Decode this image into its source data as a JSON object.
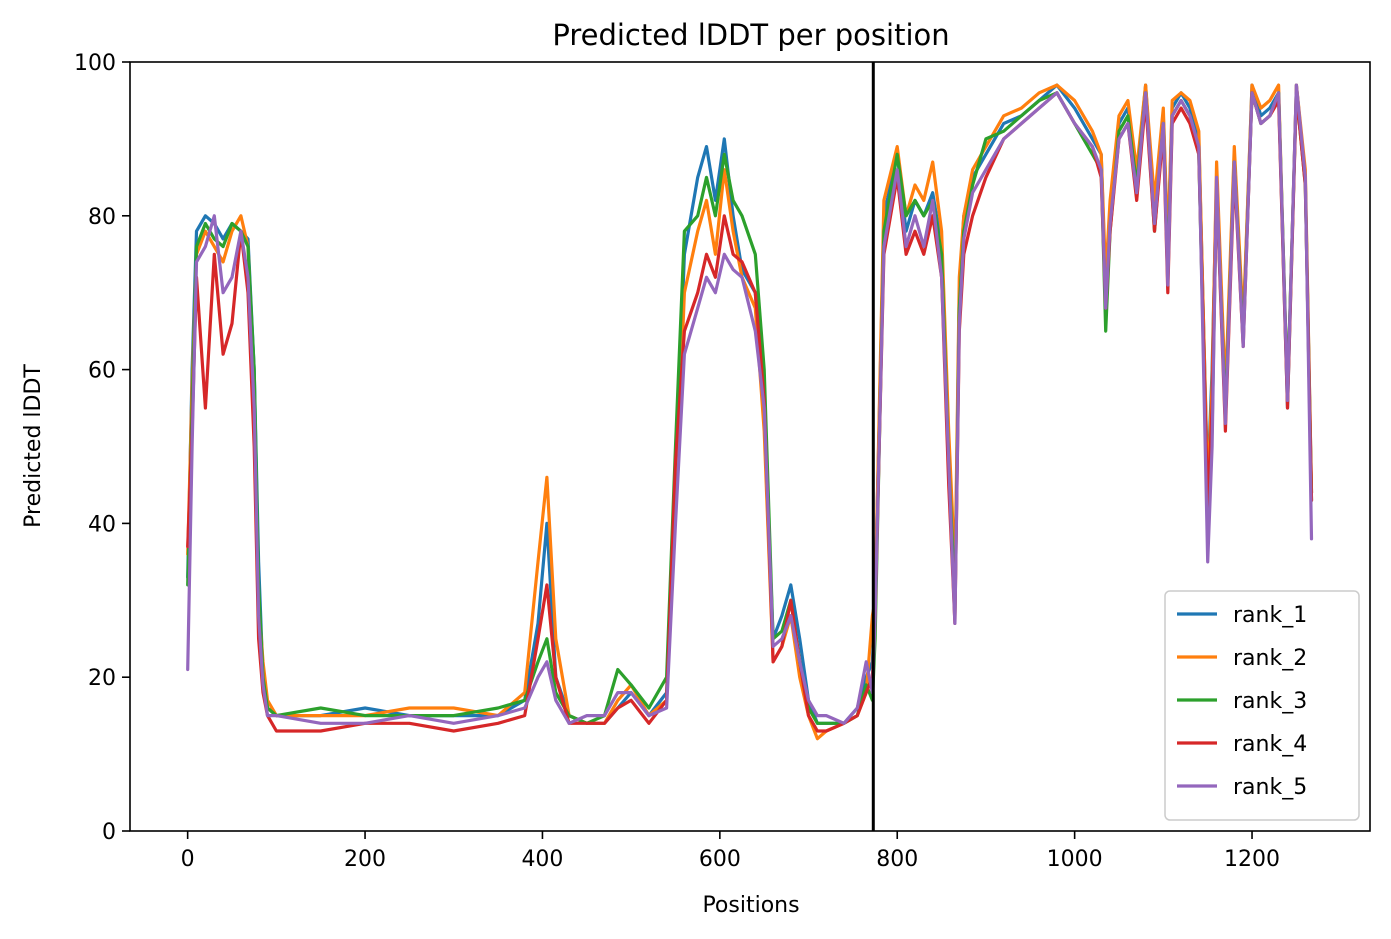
{
  "chart_data": {
    "type": "line",
    "title": "Predicted lDDT per position",
    "xlabel": "Positions",
    "ylabel": "Predicted lDDT",
    "xlim": [
      -65,
      1333
    ],
    "ylim": [
      0,
      100
    ],
    "xticks": [
      0,
      200,
      400,
      600,
      800,
      1000,
      1200
    ],
    "yticks": [
      0,
      20,
      40,
      60,
      80,
      100
    ],
    "xtick_labels": [
      "0",
      "200",
      "400",
      "600",
      "800",
      "1000",
      "1200"
    ],
    "ytick_labels": [
      "0",
      "20",
      "40",
      "60",
      "80",
      "100"
    ],
    "grid": false,
    "legend_position": "lower-right",
    "vertical_line": {
      "x": 773,
      "color": "#000000"
    },
    "series": [
      {
        "name": "rank_1",
        "color": "#1f77b4",
        "x": [
          0,
          5,
          10,
          20,
          30,
          40,
          50,
          60,
          68,
          75,
          80,
          85,
          90,
          100,
          150,
          200,
          250,
          300,
          350,
          380,
          395,
          405,
          415,
          430,
          450,
          470,
          485,
          500,
          520,
          540,
          550,
          560,
          575,
          585,
          595,
          605,
          615,
          625,
          640,
          650,
          660,
          670,
          680,
          690,
          700,
          710,
          720,
          740,
          755,
          765,
          772,
          775,
          785,
          800,
          810,
          820,
          830,
          840,
          850,
          858,
          862,
          865,
          870,
          875,
          885,
          900,
          920,
          940,
          960,
          980,
          1000,
          1020,
          1030,
          1035,
          1040,
          1050,
          1060,
          1070,
          1080,
          1090,
          1100,
          1105,
          1110,
          1120,
          1130,
          1140,
          1150,
          1155,
          1160,
          1170,
          1180,
          1190,
          1200,
          1210,
          1220,
          1230,
          1240,
          1250,
          1260,
          1267
        ],
        "y": [
          33,
          60,
          78,
          80,
          79,
          77,
          79,
          78,
          77,
          60,
          35,
          20,
          16,
          15,
          15,
          16,
          15,
          15,
          15,
          17,
          27,
          40,
          20,
          15,
          14,
          14,
          16,
          18,
          15,
          18,
          45,
          75,
          85,
          89,
          82,
          90,
          80,
          73,
          70,
          55,
          25,
          28,
          32,
          25,
          17,
          14,
          14,
          14,
          16,
          20,
          22,
          30,
          80,
          88,
          78,
          82,
          80,
          83,
          76,
          50,
          40,
          30,
          70,
          80,
          85,
          88,
          92,
          93,
          95,
          97,
          94,
          90,
          88,
          70,
          80,
          92,
          94,
          85,
          97,
          80,
          93,
          75,
          94,
          96,
          94,
          90,
          45,
          60,
          85,
          55,
          88,
          65,
          97,
          93,
          94,
          96,
          55,
          97,
          85,
          44
        ]
      },
      {
        "name": "rank_2",
        "color": "#ff7f0e",
        "x": [
          0,
          5,
          10,
          20,
          30,
          40,
          50,
          60,
          68,
          75,
          80,
          85,
          90,
          100,
          150,
          200,
          250,
          300,
          350,
          380,
          395,
          405,
          415,
          430,
          450,
          470,
          485,
          500,
          520,
          540,
          550,
          560,
          575,
          585,
          595,
          605,
          615,
          625,
          640,
          650,
          660,
          670,
          680,
          690,
          700,
          710,
          720,
          740,
          755,
          765,
          772,
          775,
          785,
          800,
          810,
          820,
          830,
          840,
          850,
          858,
          862,
          865,
          870,
          875,
          885,
          900,
          920,
          940,
          960,
          980,
          1000,
          1020,
          1030,
          1035,
          1040,
          1050,
          1060,
          1070,
          1080,
          1090,
          1100,
          1105,
          1110,
          1120,
          1130,
          1140,
          1150,
          1155,
          1160,
          1170,
          1180,
          1190,
          1200,
          1210,
          1220,
          1230,
          1240,
          1250,
          1260,
          1267
        ],
        "y": [
          36,
          58,
          75,
          78,
          76,
          74,
          78,
          80,
          76,
          58,
          30,
          22,
          17,
          15,
          15,
          15,
          16,
          16,
          15,
          18,
          35,
          46,
          25,
          15,
          14,
          14,
          17,
          19,
          15,
          17,
          42,
          70,
          78,
          82,
          75,
          86,
          78,
          72,
          68,
          52,
          22,
          24,
          28,
          20,
          15,
          12,
          13,
          14,
          15,
          18,
          28,
          30,
          82,
          89,
          80,
          84,
          82,
          87,
          78,
          52,
          42,
          32,
          72,
          80,
          86,
          89,
          93,
          94,
          96,
          97,
          95,
          91,
          88,
          72,
          82,
          93,
          95,
          86,
          97,
          82,
          94,
          76,
          95,
          96,
          95,
          91,
          44,
          58,
          87,
          57,
          89,
          66,
          97,
          94,
          95,
          97,
          56,
          97,
          86,
          44
        ]
      },
      {
        "name": "rank_3",
        "color": "#2ca02c",
        "x": [
          0,
          5,
          10,
          20,
          30,
          40,
          50,
          60,
          68,
          75,
          80,
          85,
          90,
          100,
          150,
          200,
          250,
          300,
          350,
          380,
          395,
          405,
          415,
          430,
          450,
          470,
          485,
          500,
          520,
          540,
          550,
          560,
          575,
          585,
          595,
          605,
          615,
          625,
          640,
          650,
          660,
          670,
          680,
          690,
          700,
          710,
          720,
          740,
          755,
          765,
          772,
          775,
          785,
          800,
          810,
          820,
          830,
          840,
          850,
          858,
          862,
          865,
          870,
          875,
          885,
          900,
          920,
          940,
          960,
          980,
          1000,
          1020,
          1030,
          1035,
          1040,
          1050,
          1060,
          1070,
          1080,
          1090,
          1100,
          1105,
          1110,
          1120,
          1130,
          1140,
          1150,
          1155,
          1160,
          1170,
          1180,
          1190,
          1200,
          1210,
          1220,
          1230,
          1240,
          1250,
          1260,
          1267
        ],
        "y": [
          32,
          55,
          76,
          79,
          77,
          76,
          79,
          78,
          76,
          60,
          32,
          20,
          16,
          15,
          16,
          15,
          15,
          15,
          16,
          17,
          22,
          25,
          18,
          15,
          14,
          15,
          21,
          19,
          16,
          20,
          50,
          78,
          80,
          85,
          80,
          88,
          82,
          80,
          75,
          60,
          25,
          26,
          30,
          22,
          16,
          14,
          14,
          14,
          15,
          19,
          17,
          25,
          78,
          88,
          80,
          82,
          80,
          82,
          75,
          48,
          38,
          28,
          68,
          78,
          84,
          90,
          91,
          93,
          95,
          96,
          92,
          88,
          86,
          65,
          78,
          91,
          93,
          84,
          96,
          78,
          92,
          72,
          93,
          95,
          93,
          88,
          40,
          52,
          84,
          54,
          87,
          64,
          96,
          92,
          93,
          96,
          57,
          96,
          84,
          43
        ]
      },
      {
        "name": "rank_4",
        "color": "#d62728",
        "x": [
          0,
          5,
          10,
          20,
          30,
          40,
          50,
          60,
          68,
          75,
          80,
          85,
          90,
          100,
          150,
          200,
          250,
          300,
          350,
          380,
          395,
          405,
          415,
          430,
          450,
          470,
          485,
          500,
          520,
          540,
          550,
          560,
          575,
          585,
          595,
          605,
          615,
          625,
          640,
          650,
          660,
          670,
          680,
          690,
          700,
          710,
          720,
          740,
          755,
          765,
          772,
          775,
          785,
          800,
          810,
          820,
          830,
          840,
          850,
          858,
          862,
          865,
          870,
          875,
          885,
          900,
          920,
          940,
          960,
          980,
          1000,
          1020,
          1030,
          1035,
          1040,
          1050,
          1060,
          1070,
          1080,
          1090,
          1100,
          1105,
          1110,
          1120,
          1130,
          1140,
          1150,
          1155,
          1160,
          1170,
          1180,
          1190,
          1200,
          1210,
          1220,
          1230,
          1240,
          1250,
          1260,
          1267
        ],
        "y": [
          37,
          52,
          72,
          55,
          75,
          62,
          66,
          78,
          70,
          50,
          25,
          18,
          15,
          13,
          13,
          14,
          14,
          13,
          14,
          15,
          25,
          32,
          20,
          14,
          14,
          14,
          16,
          17,
          14,
          17,
          48,
          65,
          70,
          75,
          72,
          80,
          75,
          74,
          70,
          56,
          22,
          24,
          30,
          22,
          15,
          13,
          13,
          14,
          15,
          18,
          20,
          28,
          75,
          85,
          75,
          78,
          75,
          80,
          72,
          45,
          35,
          27,
          65,
          75,
          80,
          85,
          90,
          92,
          94,
          96,
          92,
          89,
          85,
          68,
          78,
          90,
          92,
          82,
          95,
          78,
          91,
          70,
          92,
          94,
          92,
          88,
          42,
          55,
          84,
          52,
          86,
          63,
          96,
          92,
          93,
          95,
          55,
          96,
          84,
          43
        ]
      },
      {
        "name": "rank_5",
        "color": "#9467bd",
        "x": [
          0,
          5,
          10,
          20,
          30,
          40,
          50,
          60,
          68,
          75,
          80,
          85,
          90,
          100,
          150,
          200,
          250,
          300,
          350,
          380,
          395,
          405,
          415,
          430,
          450,
          470,
          485,
          500,
          520,
          540,
          550,
          560,
          575,
          585,
          595,
          605,
          615,
          625,
          640,
          650,
          660,
          670,
          680,
          690,
          700,
          710,
          720,
          740,
          755,
          765,
          772,
          775,
          785,
          800,
          810,
          820,
          830,
          840,
          850,
          858,
          862,
          865,
          870,
          875,
          885,
          900,
          920,
          940,
          960,
          980,
          1000,
          1020,
          1030,
          1035,
          1040,
          1050,
          1060,
          1070,
          1080,
          1090,
          1100,
          1105,
          1110,
          1120,
          1130,
          1140,
          1150,
          1155,
          1160,
          1170,
          1180,
          1190,
          1200,
          1210,
          1220,
          1230,
          1240,
          1250,
          1260,
          1267
        ],
        "y": [
          21,
          50,
          74,
          76,
          80,
          70,
          72,
          78,
          72,
          55,
          28,
          19,
          15,
          15,
          14,
          14,
          15,
          14,
          15,
          16,
          20,
          22,
          17,
          14,
          15,
          15,
          18,
          18,
          15,
          16,
          40,
          62,
          68,
          72,
          70,
          75,
          73,
          72,
          65,
          55,
          24,
          25,
          28,
          22,
          17,
          15,
          15,
          14,
          16,
          22,
          18,
          28,
          76,
          86,
          76,
          80,
          76,
          82,
          72,
          48,
          36,
          27,
          66,
          77,
          83,
          86,
          90,
          92,
          94,
          96,
          92,
          89,
          86,
          68,
          79,
          90,
          92,
          83,
          96,
          79,
          92,
          71,
          93,
          95,
          93,
          89,
          35,
          50,
          85,
          53,
          87,
          63,
          96,
          92,
          93,
          96,
          56,
          97,
          85,
          38
        ]
      }
    ]
  }
}
